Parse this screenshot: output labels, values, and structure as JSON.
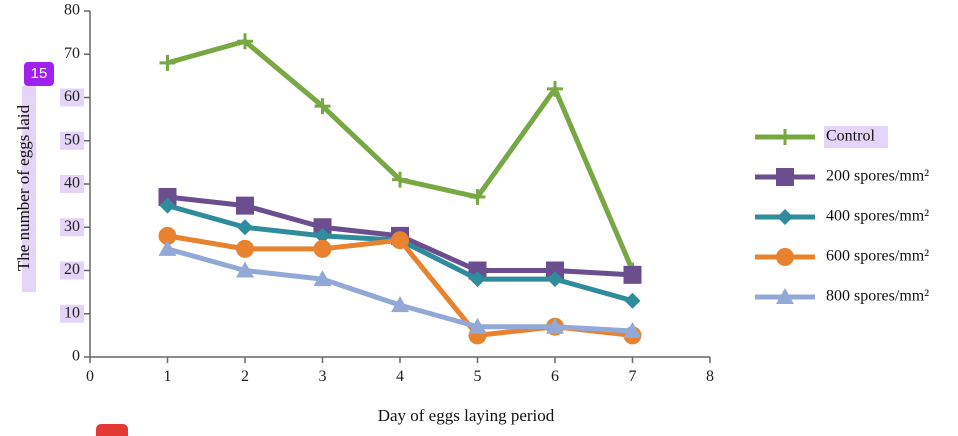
{
  "overlay": {
    "badge_label": "15"
  },
  "chart_data": {
    "type": "line",
    "title": "",
    "xlabel": "Day of eggs laying period",
    "ylabel": "The number of eggs laid",
    "xlim": [
      0,
      8
    ],
    "ylim": [
      0,
      80
    ],
    "xticks": [
      0,
      1,
      2,
      3,
      4,
      5,
      6,
      7,
      8
    ],
    "yticks": [
      0,
      10,
      20,
      30,
      40,
      50,
      60,
      70,
      80
    ],
    "x": [
      1,
      2,
      3,
      4,
      5,
      6,
      7
    ],
    "grid": false,
    "legend_position": "right",
    "series": [
      {
        "name": "Control",
        "values": [
          68,
          73,
          58,
          41,
          37,
          62,
          20
        ],
        "color": "#78a843",
        "marker": "plus"
      },
      {
        "name": "200 spores/mm²",
        "values": [
          37,
          35,
          30,
          28,
          20,
          20,
          19
        ],
        "color": "#6b4e8e",
        "marker": "square"
      },
      {
        "name": "400 spores/mm²",
        "values": [
          35,
          30,
          28,
          27,
          18,
          18,
          13
        ],
        "color": "#2f8c9c",
        "marker": "diamond"
      },
      {
        "name": "600 spores/mm²",
        "values": [
          28,
          25,
          25,
          27,
          5,
          7,
          5
        ],
        "color": "#e8822e",
        "marker": "circle"
      },
      {
        "name": "800 spores/mm²",
        "values": [
          25,
          20,
          18,
          12,
          7,
          7,
          6
        ],
        "color": "#92a8d6",
        "marker": "triangle"
      }
    ]
  }
}
